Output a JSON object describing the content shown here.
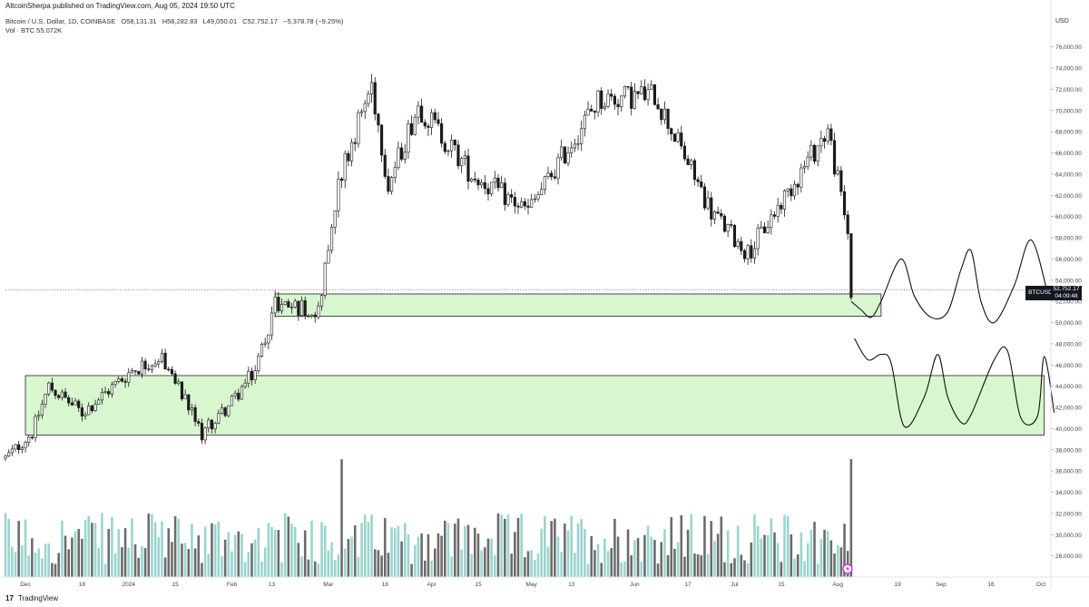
{
  "header": {
    "published": "AltcoinSherpa published on TradingView.com, Aug 05, 2024 19:50 UTC",
    "symbol": "Bitcoin / U.S. Dollar, 1D, COINBASE",
    "open": "O58,131.31",
    "high": "H58,282.83",
    "low": "L49,050.01",
    "close": "C52,752.17",
    "change": "−5,378.78 (−9.25%)",
    "volume": "Vol · BTC  55.072K"
  },
  "axis": {
    "currency": "USD"
  },
  "price_tag": {
    "symbol": "BTCUSD",
    "price": "52,752.17",
    "countdown": "04:09:48"
  },
  "footer": {
    "brand": "TradingView",
    "logo_text": "17"
  },
  "colors": {
    "up": "#9ad4cf",
    "down": "#6b6b6b",
    "candle": "#1a1a1a",
    "zone_fill": "#d8f7cf",
    "zone_stroke": "#222222"
  },
  "chart_data": {
    "type": "candlestick",
    "title": "Bitcoin / U.S. Dollar, 1D, COINBASE",
    "ylim": [
      26000,
      77000
    ],
    "y_ticks": [
      28000,
      30000,
      32000,
      34000,
      36000,
      38000,
      40000,
      42000,
      44000,
      46000,
      48000,
      50000,
      52000,
      54000,
      56000,
      58000,
      60000,
      62000,
      64000,
      66000,
      68000,
      70000,
      72000,
      74000,
      76000
    ],
    "y_tick_labels": [
      "28,000.00",
      "30,000.00",
      "32,000.00",
      "34,000.00",
      "36,000.00",
      "38,000.00",
      "40,000.00",
      "42,000.00",
      "44,000.00",
      "46,000.00",
      "48,000.00",
      "50,000.00",
      "52,000.00",
      "54,000.00",
      "56,000.00",
      "58,000.00",
      "60,000.00",
      "62,000.00",
      "64,000.00",
      "66,000.00",
      "68,000.00",
      "70,000.00",
      "72,000.00",
      "74,000.00",
      "76,000.00"
    ],
    "x_range": [
      "2023-11-25",
      "2024-10-04"
    ],
    "x_ticks": [
      {
        "date": "2023-12-01",
        "label": "Dec"
      },
      {
        "date": "2023-12-18",
        "label": "18"
      },
      {
        "date": "2024-01-01",
        "label": "2024"
      },
      {
        "date": "2024-01-15",
        "label": "15"
      },
      {
        "date": "2024-02-01",
        "label": "Feb"
      },
      {
        "date": "2024-02-13",
        "label": "13"
      },
      {
        "date": "2024-03-01",
        "label": "Mar"
      },
      {
        "date": "2024-03-18",
        "label": "18"
      },
      {
        "date": "2024-04-01",
        "label": "Apr"
      },
      {
        "date": "2024-04-15",
        "label": "15"
      },
      {
        "date": "2024-05-01",
        "label": "May"
      },
      {
        "date": "2024-05-13",
        "label": "13"
      },
      {
        "date": "2024-06-01",
        "label": "Jun"
      },
      {
        "date": "2024-06-17",
        "label": "17"
      },
      {
        "date": "2024-07-01",
        "label": "Jul"
      },
      {
        "date": "2024-07-15",
        "label": "15"
      },
      {
        "date": "2024-08-01",
        "label": "Aug"
      },
      {
        "date": "2024-08-19",
        "label": "19"
      },
      {
        "date": "2024-09-01",
        "label": "Sep"
      },
      {
        "date": "2024-09-16",
        "label": "16"
      },
      {
        "date": "2024-10-01",
        "label": "Oct"
      }
    ],
    "current_price": 52752.17,
    "price_path": [
      [
        "2023-11-25",
        37200
      ],
      [
        "2023-12-03",
        39600
      ],
      [
        "2023-12-08",
        44000
      ],
      [
        "2023-12-18",
        41500
      ],
      [
        "2024-01-02",
        45500
      ],
      [
        "2024-01-11",
        46800
      ],
      [
        "2024-01-23",
        39500
      ],
      [
        "2024-02-01",
        42500
      ],
      [
        "2024-02-08",
        45500
      ],
      [
        "2024-02-14",
        51800
      ],
      [
        "2024-02-27",
        51200
      ],
      [
        "2024-03-04",
        63500
      ],
      [
        "2024-03-14",
        72500
      ],
      [
        "2024-03-19",
        63000
      ],
      [
        "2024-03-28",
        70500
      ],
      [
        "2024-04-13",
        64000
      ],
      [
        "2024-04-30",
        60500
      ],
      [
        "2024-05-21",
        71000
      ],
      [
        "2024-06-07",
        71500
      ],
      [
        "2024-06-24",
        60500
      ],
      [
        "2024-07-05",
        56500
      ],
      [
        "2024-07-29",
        68200
      ],
      [
        "2024-08-04",
        58500
      ],
      [
        "2024-08-05",
        52752
      ]
    ],
    "zones": [
      {
        "from": "2024-02-14",
        "to": "2024-08-14",
        "low": 50600,
        "high": 52700
      },
      {
        "from": "2023-12-01",
        "to": "2024-10-02",
        "low": 39400,
        "high": 45000
      }
    ],
    "projection_upper": [
      [
        "2024-08-05",
        52000
      ],
      [
        "2024-08-08",
        51200
      ],
      [
        "2024-08-11",
        50500
      ],
      [
        "2024-08-14",
        52000
      ],
      [
        "2024-08-20",
        56000
      ],
      [
        "2024-08-24",
        52500
      ],
      [
        "2024-08-29",
        50500
      ],
      [
        "2024-09-03",
        51000
      ],
      [
        "2024-09-07",
        55000
      ],
      [
        "2024-09-10",
        56800
      ],
      [
        "2024-09-13",
        52000
      ],
      [
        "2024-09-17",
        50000
      ],
      [
        "2024-09-23",
        53500
      ],
      [
        "2024-09-28",
        57800
      ],
      [
        "2024-10-03",
        52800
      ]
    ],
    "projection_lower": [
      [
        "2024-08-06",
        48500
      ],
      [
        "2024-08-10",
        46500
      ],
      [
        "2024-08-14",
        47000
      ],
      [
        "2024-08-17",
        46200
      ],
      [
        "2024-08-21",
        40200
      ],
      [
        "2024-08-27",
        43000
      ],
      [
        "2024-08-31",
        47000
      ],
      [
        "2024-09-03",
        43000
      ],
      [
        "2024-09-07",
        40600
      ],
      [
        "2024-09-10",
        41300
      ],
      [
        "2024-09-17",
        46500
      ],
      [
        "2024-09-21",
        47300
      ],
      [
        "2024-09-25",
        41000
      ],
      [
        "2024-09-30",
        41200
      ],
      [
        "2024-10-02",
        46800
      ],
      [
        "2024-10-05",
        41500
      ]
    ],
    "volume": {
      "max_btc": 55072,
      "typical_range_btc": [
        6000,
        30000
      ],
      "spikes": [
        [
          "2024-01-11",
          26000
        ],
        [
          "2024-03-05",
          55000
        ],
        [
          "2024-02-29",
          24000
        ],
        [
          "2024-08-05",
          55072
        ]
      ]
    }
  }
}
